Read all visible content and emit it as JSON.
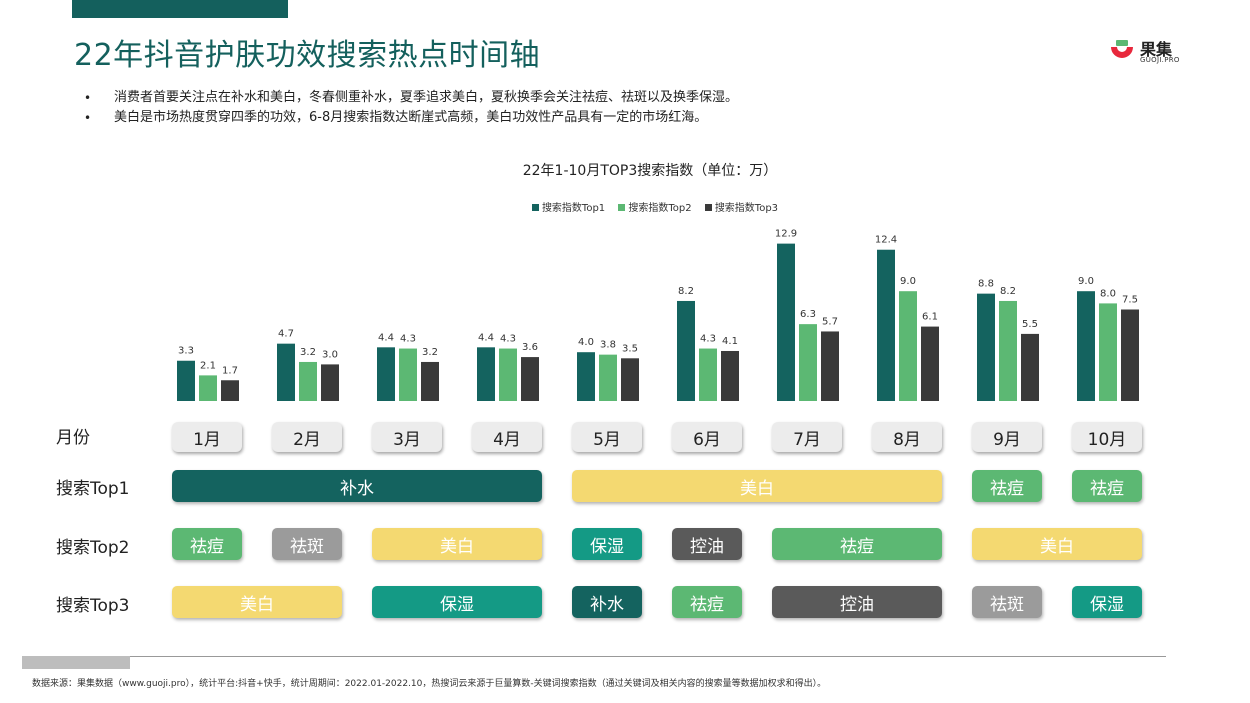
{
  "page": {
    "title": "22年抖音护肤功效搜索热点时间轴",
    "bullets": [
      "消费者首要关注点在补水和美白，冬春侧重补水，夏季追求美白，夏秋换季会关注祛痘、祛斑以及换季保湿。",
      "美白是市场热度贯穿四季的功效，6-8月搜索指数达断崖式高频，美白功效性产品具有一定的市场红海。"
    ],
    "logo": {
      "cn": "果集",
      "en": "GUOJI.PRO"
    },
    "footer_note": "数据来源：果集数据（www.guoji.pro），统计平台:抖音+快手，统计周期间：2022.01-2022.10，热搜词云来源于巨量算数-关键词搜索指数（通过关键词及相关内容的搜索量等数据加权求和得出）。"
  },
  "chart_data": {
    "type": "bar",
    "title": "22年1-10月TOP3搜索指数（单位：万）",
    "categories": [
      "1月",
      "2月",
      "3月",
      "4月",
      "5月",
      "6月",
      "7月",
      "8月",
      "9月",
      "10月"
    ],
    "series": [
      {
        "name": "搜索指数Top1",
        "color": "#14635f",
        "values": [
          3.3,
          4.7,
          4.4,
          4.4,
          4.0,
          8.2,
          12.9,
          12.4,
          8.8,
          9.0
        ]
      },
      {
        "name": "搜索指数Top2",
        "color": "#5cb873",
        "values": [
          2.1,
          3.2,
          4.3,
          4.3,
          3.8,
          4.3,
          6.3,
          9.0,
          8.2,
          8.0
        ]
      },
      {
        "name": "搜索指数Top3",
        "color": "#3a3a3a",
        "values": [
          1.7,
          3.0,
          3.2,
          3.6,
          3.5,
          4.1,
          5.7,
          6.1,
          5.5,
          7.5
        ]
      }
    ],
    "legend_position": "top-center",
    "grid": false,
    "axes_visible": false,
    "data_labels": true
  },
  "timeline": {
    "row_labels": {
      "month": "月份",
      "top1": "搜索Top1",
      "top2": "搜索Top2",
      "top3": "搜索Top3"
    },
    "colors": {
      "补水": "#14635f",
      "美白": "#f4d971",
      "祛痘": "#5cb873",
      "祛斑": "#9b9b9b",
      "保湿": "#149a85",
      "控油": "#5a5a5a"
    },
    "top1": [
      {
        "label": "补水",
        "start": 1,
        "end": 4
      },
      {
        "label": "美白",
        "start": 5,
        "end": 8
      },
      {
        "label": "祛痘",
        "start": 9,
        "end": 9
      },
      {
        "label": "祛痘",
        "start": 10,
        "end": 10
      }
    ],
    "top2": [
      {
        "label": "祛痘",
        "start": 1,
        "end": 1
      },
      {
        "label": "祛斑",
        "start": 2,
        "end": 2
      },
      {
        "label": "美白",
        "start": 3,
        "end": 4
      },
      {
        "label": "保湿",
        "start": 5,
        "end": 5
      },
      {
        "label": "控油",
        "start": 6,
        "end": 6
      },
      {
        "label": "祛痘",
        "start": 7,
        "end": 8
      },
      {
        "label": "美白",
        "start": 9,
        "end": 10
      }
    ],
    "top3": [
      {
        "label": "美白",
        "start": 1,
        "end": 2
      },
      {
        "label": "保湿",
        "start": 3,
        "end": 4
      },
      {
        "label": "补水",
        "start": 5,
        "end": 5
      },
      {
        "label": "祛痘",
        "start": 6,
        "end": 6
      },
      {
        "label": "控油",
        "start": 7,
        "end": 8
      },
      {
        "label": "祛斑",
        "start": 9,
        "end": 9
      },
      {
        "label": "保湿",
        "start": 10,
        "end": 10
      }
    ]
  }
}
